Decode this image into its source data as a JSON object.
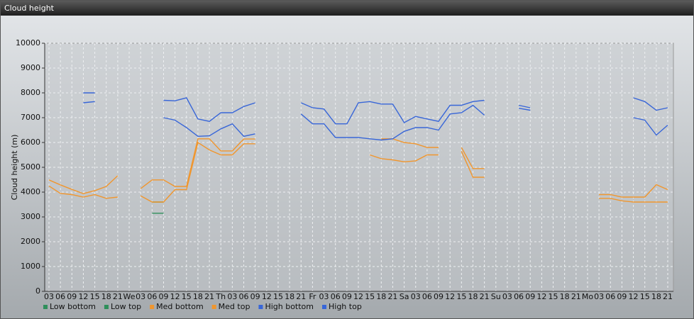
{
  "chart_data": {
    "type": "line",
    "title": "Cloud height",
    "y_label": "Cloud height (m)",
    "categories": [
      "03",
      "06",
      "09",
      "12",
      "15",
      "18",
      "21",
      "We",
      "03",
      "06",
      "09",
      "12",
      "15",
      "18",
      "21",
      "Th",
      "03",
      "06",
      "09",
      "12",
      "15",
      "18",
      "21",
      "Fr",
      "03",
      "06",
      "09",
      "12",
      "15",
      "18",
      "21",
      "Sa",
      "03",
      "06",
      "09",
      "12",
      "15",
      "18",
      "21",
      "Su",
      "03",
      "06",
      "09",
      "12",
      "15",
      "18",
      "21",
      "Mo",
      "03",
      "06",
      "09",
      "12",
      "15",
      "18",
      "21"
    ],
    "ylim": [
      0,
      10000
    ],
    "yticks": [
      0,
      1000,
      2000,
      3000,
      4000,
      5000,
      6000,
      7000,
      8000,
      9000,
      10000
    ],
    "grid": true,
    "legend_position": "bottom",
    "series": [
      {
        "name": "Low bottom",
        "color": "#2f8f5b",
        "values": [
          null,
          null,
          null,
          null,
          null,
          null,
          null,
          null,
          null,
          3150,
          3150,
          null,
          null,
          null,
          null,
          null,
          null,
          null,
          null,
          null,
          null,
          null,
          null,
          null,
          null,
          null,
          null,
          null,
          null,
          null,
          null,
          null,
          null,
          null,
          null,
          null,
          null,
          null,
          null,
          null,
          null,
          null,
          null,
          null,
          null,
          null,
          null,
          null,
          null,
          null,
          null,
          null,
          null,
          null,
          null
        ]
      },
      {
        "name": "Low top",
        "color": "#2f8f5b",
        "values": [
          null,
          null,
          null,
          null,
          null,
          null,
          null,
          null,
          null,
          3600,
          3600,
          null,
          null,
          null,
          null,
          null,
          null,
          null,
          null,
          null,
          null,
          null,
          null,
          null,
          null,
          null,
          null,
          null,
          null,
          null,
          null,
          null,
          null,
          null,
          null,
          null,
          null,
          null,
          null,
          null,
          null,
          null,
          null,
          null,
          null,
          null,
          null,
          null,
          null,
          null,
          null,
          null,
          null,
          null,
          null
        ]
      },
      {
        "name": "Med bottom",
        "color": "#f0962e",
        "values": [
          4250,
          3950,
          3900,
          3800,
          3900,
          3750,
          3800,
          null,
          3850,
          3600,
          3600,
          4100,
          4100,
          6000,
          5700,
          5500,
          5500,
          5950,
          5950,
          null,
          null,
          null,
          null,
          null,
          null,
          null,
          null,
          null,
          5500,
          5350,
          5300,
          5220,
          5260,
          5500,
          5500,
          null,
          5650,
          4600,
          4600,
          null,
          null,
          null,
          null,
          null,
          null,
          null,
          null,
          null,
          3750,
          3750,
          3650,
          3600,
          3600,
          3600,
          3600
        ]
      },
      {
        "name": "Med top",
        "color": "#f0962e",
        "values": [
          4490,
          4290,
          4110,
          3940,
          4060,
          4230,
          4660,
          null,
          4140,
          4490,
          4490,
          4230,
          4230,
          6150,
          6150,
          5660,
          5660,
          6140,
          6140,
          null,
          null,
          null,
          null,
          null,
          null,
          null,
          null,
          null,
          null,
          6150,
          6150,
          6000,
          5950,
          5800,
          5800,
          null,
          5800,
          4950,
          4950,
          null,
          null,
          null,
          null,
          null,
          null,
          null,
          null,
          null,
          3900,
          3900,
          3800,
          3800,
          3800,
          4300,
          4100
        ]
      },
      {
        "name": "High bottom",
        "color": "#3866d8",
        "values": [
          null,
          null,
          null,
          7600,
          7650,
          null,
          null,
          null,
          null,
          null,
          7000,
          6900,
          6600,
          6250,
          6270,
          6550,
          6750,
          6250,
          6350,
          null,
          null,
          null,
          7150,
          6750,
          6750,
          6200,
          6200,
          6200,
          6150,
          6100,
          6150,
          6450,
          6600,
          6600,
          6500,
          7150,
          7200,
          7500,
          7100,
          null,
          null,
          7380,
          7300,
          null,
          null,
          null,
          null,
          null,
          null,
          null,
          null,
          7000,
          6900,
          6300,
          6700
        ]
      },
      {
        "name": "High top",
        "color": "#3866d8",
        "values": [
          null,
          null,
          null,
          8000,
          8000,
          null,
          null,
          null,
          null,
          null,
          7700,
          7680,
          7800,
          6950,
          6850,
          7200,
          7200,
          7450,
          7600,
          null,
          null,
          null,
          7600,
          7400,
          7350,
          6750,
          6750,
          7600,
          7650,
          7550,
          7550,
          6800,
          7050,
          6950,
          6850,
          7500,
          7500,
          7650,
          7700,
          null,
          null,
          7500,
          7400,
          null,
          null,
          null,
          null,
          null,
          null,
          null,
          null,
          7800,
          7650,
          7300,
          7400
        ]
      }
    ]
  }
}
